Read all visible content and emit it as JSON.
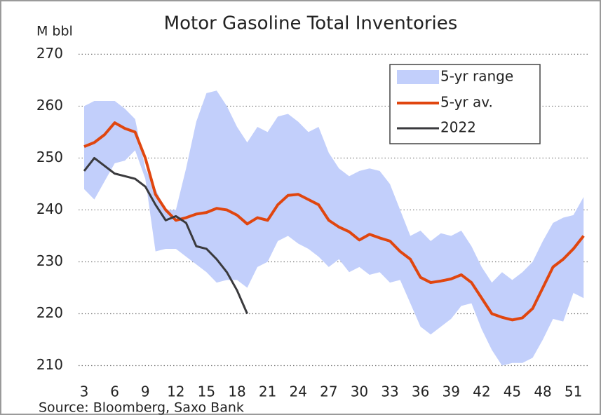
{
  "chart_data": {
    "type": "line",
    "title": "Motor Gasoline Total Inventories",
    "y_label": "M bbl",
    "source": "Source: Bloomberg, Saxo Bank",
    "x": [
      3,
      4,
      5,
      6,
      7,
      8,
      9,
      10,
      11,
      12,
      13,
      14,
      15,
      16,
      17,
      18,
      19,
      20,
      21,
      22,
      23,
      24,
      25,
      26,
      27,
      28,
      29,
      30,
      31,
      32,
      33,
      34,
      35,
      36,
      37,
      38,
      39,
      40,
      41,
      42,
      43,
      44,
      45,
      46,
      47,
      48,
      49,
      50,
      51,
      52
    ],
    "range": {
      "name": "5-yr range",
      "color": "#c2cffb",
      "high": [
        260,
        261,
        261,
        261,
        259.5,
        257.5,
        248,
        244,
        240,
        240,
        248,
        257,
        262.5,
        263,
        260,
        256,
        253,
        256,
        255,
        258,
        258.5,
        257,
        255,
        256,
        251,
        248,
        246.5,
        247.5,
        248,
        247.5,
        245,
        240,
        235,
        236,
        234,
        235.5,
        235,
        236,
        233,
        229,
        226,
        228,
        226.5,
        228,
        230,
        234,
        237.5,
        238.5,
        239,
        242.5
      ],
      "low": [
        244,
        242,
        245.5,
        249,
        249.5,
        251.5,
        246,
        232,
        232.5,
        232.5,
        231,
        229.5,
        228,
        226,
        226.5,
        226.5,
        225,
        229,
        230,
        234,
        235,
        233.5,
        232.5,
        231,
        229,
        230.5,
        228,
        229,
        227.5,
        228,
        226,
        226.5,
        222,
        217.5,
        216,
        217.5,
        219,
        221.5,
        222,
        217,
        213,
        210,
        210.5,
        210.5,
        211.5,
        215,
        219,
        218.5,
        224,
        223
      ]
    },
    "series": [
      {
        "name": "5-yr av.",
        "color": "#e0460f",
        "width": 4,
        "values": [
          252.2,
          253,
          254.5,
          256.8,
          255.7,
          255,
          250,
          243,
          240,
          238,
          238.5,
          239.2,
          239.5,
          240.3,
          240,
          239,
          237.3,
          238.5,
          238,
          241,
          242.8,
          243,
          242,
          241,
          238,
          236.7,
          235.8,
          234.2,
          235.3,
          234.6,
          234,
          232,
          230.5,
          227,
          226,
          226.3,
          226.7,
          227.5,
          226,
          223,
          220,
          219.3,
          218.8,
          219.2,
          221,
          225,
          229,
          230.5,
          232.5,
          235
        ]
      },
      {
        "name": "2022",
        "color": "#3a3a3d",
        "width": 3,
        "values": [
          247.5,
          250,
          248.5,
          247,
          246.5,
          246,
          244.5,
          241,
          238,
          238.8,
          237.5,
          233,
          232.5,
          230.5,
          228,
          224.5,
          220,
          null,
          null,
          null,
          null,
          null,
          null,
          null,
          null,
          null,
          null,
          null,
          null,
          null,
          null,
          null,
          null,
          null,
          null,
          null,
          null,
          null,
          null,
          null,
          null,
          null,
          null,
          null,
          null,
          null,
          null,
          null,
          null,
          null
        ]
      }
    ],
    "xlim": [
      2.45,
      52.4
    ],
    "ylim": [
      207.5,
      271
    ],
    "xticks": [
      3,
      6,
      9,
      12,
      15,
      18,
      21,
      24,
      27,
      30,
      33,
      36,
      39,
      42,
      45,
      48,
      51
    ],
    "yticks": [
      210,
      220,
      230,
      240,
      250,
      260,
      270
    ],
    "grid": true,
    "legend": "upper right"
  }
}
